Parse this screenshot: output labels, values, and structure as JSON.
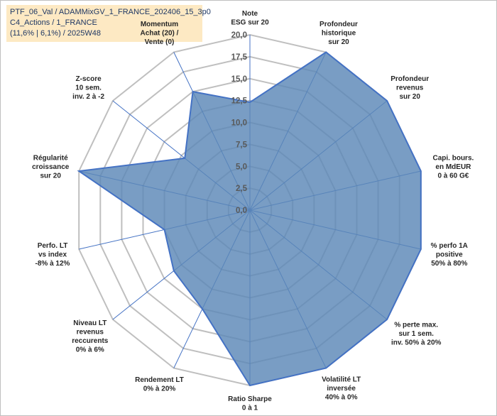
{
  "info": {
    "line1": "PTF_06_Val / ADAMMixGV_1_FRANCE_202406_15_3p0",
    "line2": "C4_Actions / 1_FRANCE",
    "line3": "(11,6% | 6,1%) / 2025W48"
  },
  "colors": {
    "fill": "#5b87b7",
    "stroke": "#4472c4",
    "grid": "#bfbfbf",
    "spoke": "#4472c4",
    "info_bg": "#fde9c3",
    "highlight_label": "#8c7a4f"
  },
  "chart_data": {
    "type": "radar",
    "rmin": 0,
    "rmax": 20,
    "step": 2.5,
    "ticks": [
      "0,0",
      "2,5",
      "5,0",
      "7,5",
      "10,0",
      "12,5",
      "15,0",
      "17,5",
      "20,0"
    ],
    "axes": [
      {
        "label": [
          "Note",
          "ESG sur 20"
        ]
      },
      {
        "label": [
          "Profondeur",
          "historique",
          "sur 20"
        ]
      },
      {
        "label": [
          "Profondeur",
          "revenus",
          "sur 20"
        ]
      },
      {
        "label": [
          "Capi. bours.",
          "en MdEUR",
          "0 à 60 G€"
        ]
      },
      {
        "label": [
          "% perfo 1A",
          "positive",
          "50% à 80%"
        ]
      },
      {
        "label": [
          "% perte max.",
          "sur 1 sem.",
          "inv. 50% à 20%"
        ]
      },
      {
        "label": [
          "Volatilité LT",
          "inversée",
          "40% à 0%"
        ]
      },
      {
        "label": [
          "Ratio Sharpe",
          "0 à 1"
        ]
      },
      {
        "label": [
          "Rendement LT",
          "0% à 20%"
        ]
      },
      {
        "label": [
          "Niveau LT",
          "revenus",
          "reccurents",
          "0% à 6%"
        ]
      },
      {
        "label": [
          "Perfo. LT",
          "vs index",
          "-8% à 12%"
        ]
      },
      {
        "label": [
          "Régularité",
          "croissance",
          "sur 20"
        ]
      },
      {
        "label": [
          "Z-score",
          "10 sem.",
          "inv. 2 à -2"
        ]
      },
      {
        "label": [
          "Momentum",
          "Achat (20) /",
          "Vente (0)"
        ],
        "highlight_first": true
      }
    ],
    "series": [
      {
        "values": [
          12.3,
          20,
          20,
          20,
          20,
          20,
          20,
          20,
          12.5,
          11.1,
          10,
          20,
          9.5,
          15
        ]
      }
    ]
  }
}
